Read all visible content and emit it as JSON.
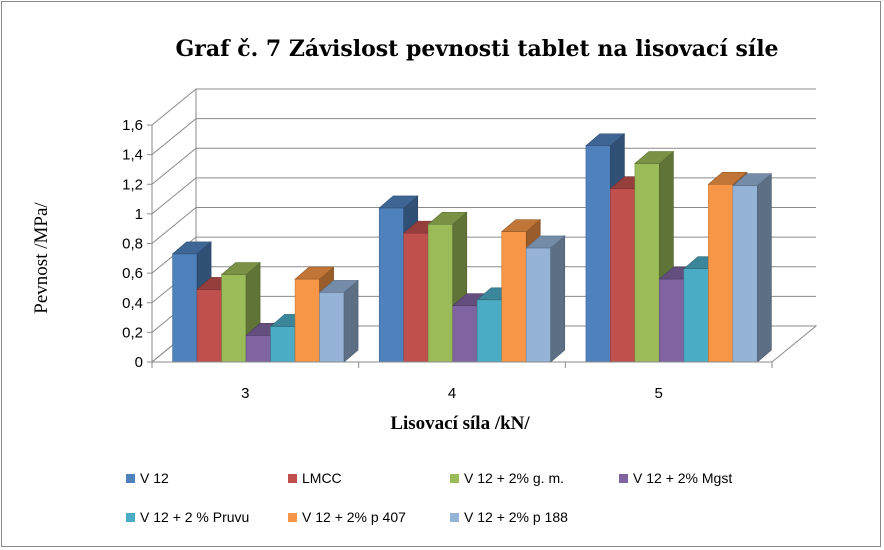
{
  "chart_data": {
    "type": "bar",
    "title": "Graf č. 7  Závislost pevnosti tablet na lisovací síle",
    "xlabel": "Lisovací síla /kN/",
    "ylabel": "Pevnost /MPa/",
    "categories": [
      "3",
      "4",
      "5"
    ],
    "ylim": [
      0,
      1.6
    ],
    "yticks": [
      "0",
      "0,2",
      "0,4",
      "0,6",
      "0,8",
      "1",
      "1,2",
      "1,4",
      "1,6"
    ],
    "grid": true,
    "legend_position": "bottom",
    "series": [
      {
        "name": "V 12",
        "values": [
          0.73,
          1.04,
          1.46
        ],
        "color": "#4F81BD"
      },
      {
        "name": "LMCC",
        "values": [
          0.49,
          0.87,
          1.17
        ],
        "color": "#C0504D"
      },
      {
        "name": "V 12 + 2% g. m.",
        "values": [
          0.59,
          0.93,
          1.34
        ],
        "color": "#9BBB59"
      },
      {
        "name": "V 12 + 2% Mgst",
        "values": [
          0.18,
          0.38,
          0.56
        ],
        "color": "#8064A2"
      },
      {
        "name": "V 12 + 2 % Pruvu",
        "values": [
          0.24,
          0.42,
          0.63
        ],
        "color": "#4BACC6"
      },
      {
        "name": "V 12 + 2% p 407",
        "values": [
          0.56,
          0.88,
          1.2
        ],
        "color": "#F79646"
      },
      {
        "name": "V 12 + 2% p 188",
        "values": [
          0.47,
          0.77,
          1.19
        ],
        "color": "#95B3D7"
      }
    ]
  }
}
